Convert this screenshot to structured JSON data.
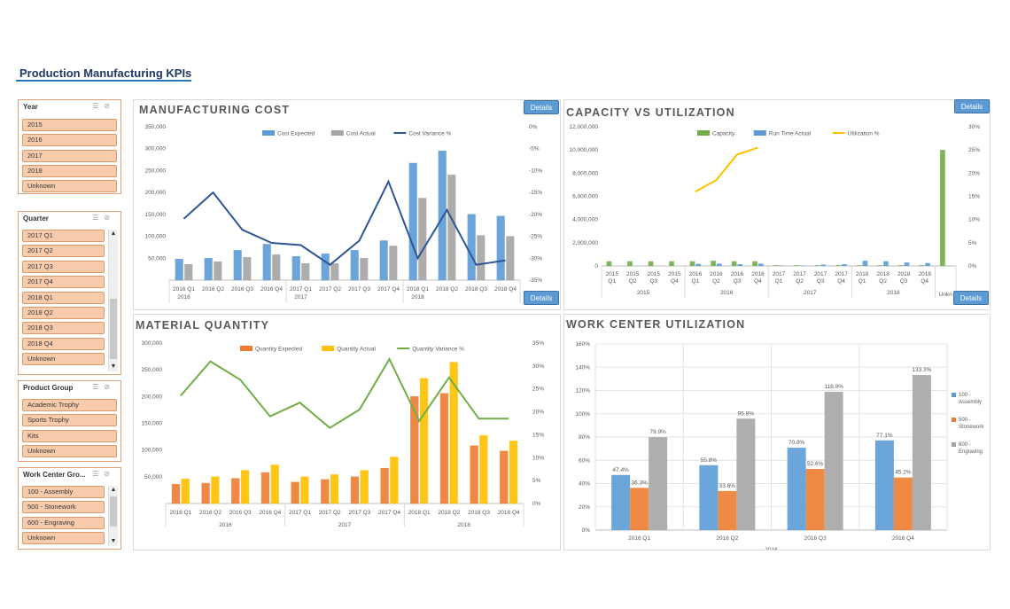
{
  "page": {
    "title": "Production Manufacturing KPIs"
  },
  "slicers": [
    {
      "title": "Year",
      "items": [
        "2015",
        "2016",
        "2017",
        "2018",
        "Unknown"
      ]
    },
    {
      "title": "Quarter",
      "items": [
        "2017 Q1",
        "2017 Q2",
        "2017 Q3",
        "2017 Q4",
        "2018 Q1",
        "2018 Q2",
        "2018 Q3",
        "2018 Q4",
        "Unknown"
      ]
    },
    {
      "title": "Product Group",
      "items": [
        "Academic Trophy",
        "Sports Trophy",
        "Kits",
        "Unknown"
      ]
    },
    {
      "title": "Work Center Gro...",
      "items": [
        "100 - Assembly",
        "500 - Stonework",
        "600 - Engraving",
        "Unknown"
      ]
    }
  ],
  "buttons": {
    "details": "Details"
  },
  "colors": {
    "blue": "#5b9bd5",
    "gray": "#a5a5a5",
    "orange": "#ed7d31",
    "yellow": "#ffc000",
    "green": "#70ad47",
    "navy": "#2f5597"
  },
  "chart_data": [
    {
      "title": "MANUFACTURING COST",
      "type": "bar",
      "categories": [
        "2016 Q1",
        "2016 Q2",
        "2016 Q3",
        "2016 Q4",
        "2017 Q1",
        "2017 Q2",
        "2017 Q3",
        "2017 Q4",
        "2018 Q1",
        "2018 Q2",
        "2018 Q3",
        "2018 Q4"
      ],
      "year_groups": [
        "2016",
        "2017",
        "2018"
      ],
      "series": [
        {
          "name": "Cost Expected",
          "type": "bar",
          "values": [
            48000,
            50000,
            68000,
            82000,
            54000,
            60000,
            68000,
            90000,
            267000,
            295000,
            150000,
            146000
          ]
        },
        {
          "name": "Cost Actual",
          "type": "bar",
          "values": [
            36000,
            42000,
            52000,
            58000,
            38000,
            38000,
            50000,
            78000,
            187000,
            240000,
            102000,
            100000
          ]
        },
        {
          "name": "Cost Variance %",
          "type": "line",
          "axis": "right",
          "values": [
            -21,
            -15,
            -23.5,
            -26.5,
            -27,
            -31.5,
            -26,
            -12.5,
            -30,
            -19,
            -31.5,
            -30.5
          ]
        }
      ],
      "y_ticks": [
        "50,000",
        "100,000",
        "150,000",
        "200,000",
        "250,000",
        "300,000",
        "350,000"
      ],
      "ylim": [
        0,
        350000
      ],
      "y2_ticks": [
        "0%",
        "-5%",
        "-10%",
        "-15%",
        "-20%",
        "-25%",
        "-30%",
        "-35%"
      ],
      "y2lim": [
        -35,
        0
      ]
    },
    {
      "title": "CAPACITY VS UTILIZATION",
      "type": "bar",
      "categories": [
        "2015 Q1",
        "2015 Q2",
        "2015 Q3",
        "2015 Q4",
        "2016 Q1",
        "2016 Q2",
        "2016 Q3",
        "2016 Q4",
        "2017 Q1",
        "2017 Q2",
        "2017 Q3",
        "2017 Q4",
        "2018 Q1",
        "2018 Q2",
        "2018 Q3",
        "2018 Q4",
        "Unkn"
      ],
      "x_labels_top": [
        "2015",
        "2015",
        "2015",
        "2015",
        "2016",
        "2016",
        "2016",
        "2016",
        "2017",
        "2017",
        "2017",
        "2017",
        "2018",
        "2018",
        "2018",
        "2018",
        ""
      ],
      "x_labels_bottom": [
        "Q1",
        "Q2",
        "Q3",
        "Q4",
        "Q1",
        "Q2",
        "Q3",
        "Q4",
        "Q1",
        "Q2",
        "Q3",
        "Q4",
        "Q1",
        "Q2",
        "Q3",
        "Q4",
        ""
      ],
      "year_groups": [
        "2015",
        "2016",
        "2017",
        "2018"
      ],
      "last_category_label": "Unkn",
      "series": [
        {
          "name": "Capacity",
          "type": "bar",
          "values": [
            400000,
            400000,
            400000,
            400000,
            400000,
            450000,
            400000,
            400000,
            60000,
            60000,
            60000,
            60000,
            60000,
            60000,
            60000,
            60000,
            10000000
          ]
        },
        {
          "name": "Run Time Actual",
          "type": "bar",
          "values": [
            0,
            0,
            0,
            0,
            180000,
            200000,
            150000,
            200000,
            40000,
            40000,
            120000,
            150000,
            450000,
            400000,
            300000,
            250000,
            0
          ]
        },
        {
          "name": "Utilization %",
          "type": "line",
          "axis": "right",
          "values": [
            null,
            null,
            null,
            null,
            16,
            18.5,
            24,
            25.5,
            null,
            null,
            null,
            null,
            null,
            null,
            null,
            null,
            null
          ]
        }
      ],
      "y_ticks": [
        "0",
        "2,000,000",
        "4,000,000",
        "6,000,000",
        "8,000,000",
        "10,000,000",
        "12,000,000"
      ],
      "ylim": [
        0,
        12000000
      ],
      "y2_ticks": [
        "0%",
        "5%",
        "10%",
        "15%",
        "20%",
        "25%",
        "30%"
      ],
      "y2lim": [
        0,
        30
      ]
    },
    {
      "title": "MATERIAL QUANTITY",
      "type": "bar",
      "categories": [
        "2016 Q1",
        "2016 Q2",
        "2016 Q3",
        "2016 Q4",
        "2017 Q1",
        "2017 Q2",
        "2017 Q3",
        "2017 Q4",
        "2018 Q1",
        "2018 Q2",
        "2018 Q3",
        "2018 Q4"
      ],
      "year_groups": [
        "2016",
        "2017",
        "2018"
      ],
      "series": [
        {
          "name": "Quantity Expected",
          "type": "bar",
          "values": [
            36000,
            38000,
            47000,
            58000,
            40000,
            45000,
            50000,
            66000,
            200000,
            206000,
            108000,
            98000
          ]
        },
        {
          "name": "Quantity Actual",
          "type": "bar",
          "values": [
            46000,
            50000,
            62000,
            72000,
            50000,
            54000,
            62000,
            87000,
            234000,
            264000,
            127000,
            117000
          ]
        },
        {
          "name": "Quantity Variance %",
          "type": "line",
          "axis": "right",
          "values": [
            23.5,
            31,
            27,
            19,
            22,
            16.5,
            20.5,
            31.5,
            18,
            27.5,
            18.5,
            18.5
          ]
        }
      ],
      "y_ticks": [
        "50,000",
        "100,000",
        "150,000",
        "200,000",
        "250,000",
        "300,000"
      ],
      "ylim": [
        0,
        300000
      ],
      "y2_ticks": [
        "0%",
        "5%",
        "10%",
        "15%",
        "20%",
        "25%",
        "30%",
        "35%"
      ],
      "y2lim": [
        0,
        35
      ]
    },
    {
      "title": "WORK CENTER UTILIZATION",
      "type": "bar",
      "categories": [
        "2016 Q1",
        "2016 Q2",
        "2016 Q3",
        "2016 Q4"
      ],
      "year_group": "2016",
      "series": [
        {
          "name": "100 - Assembly",
          "values": [
            47.4,
            55.8,
            70.8,
            77.1
          ],
          "labels": [
            "47.4%",
            "55.8%",
            "70.8%",
            "77.1%"
          ]
        },
        {
          "name": "500 - Stonework",
          "values": [
            36.3,
            33.6,
            52.6,
            45.2
          ],
          "labels": [
            "36.3%",
            "33.6%",
            "52.6%",
            "45.2%"
          ]
        },
        {
          "name": "600 - Engraving",
          "values": [
            79.9,
            95.8,
            118.9,
            133.3
          ],
          "labels": [
            "79.9%",
            "95.8%",
            "118.9%",
            "133.3%"
          ]
        }
      ],
      "y_ticks": [
        "0%",
        "20%",
        "40%",
        "60%",
        "80%",
        "100%",
        "120%",
        "140%",
        "160%"
      ],
      "ylim": [
        0,
        160
      ],
      "legend": "right"
    }
  ]
}
